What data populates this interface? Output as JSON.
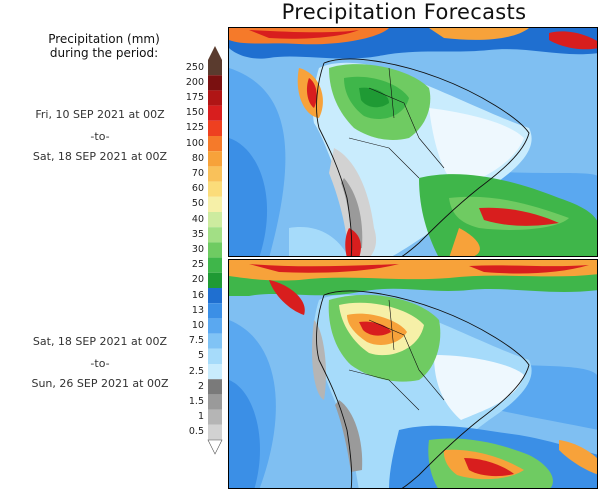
{
  "header": {
    "title": "Precipitation Forecasts"
  },
  "legend": {
    "title_line1": "Precipitation (mm)",
    "title_line2": "during the period:",
    "levels": [
      "250",
      "200",
      "175",
      "150",
      "125",
      "100",
      "80",
      "70",
      "60",
      "50",
      "40",
      "35",
      "30",
      "25",
      "20",
      "16",
      "13",
      "10",
      "7.5",
      "5",
      "2.5",
      "2",
      "1.5",
      "1",
      "0.5"
    ],
    "colors": [
      "#5a3b2e",
      "#7a1010",
      "#b01515",
      "#d81e1e",
      "#ee4020",
      "#f57a2a",
      "#f7a23a",
      "#f9c15a",
      "#fbdc7a",
      "#f6f0a8",
      "#cdeb9f",
      "#a2df85",
      "#6fcb62",
      "#3fb64a",
      "#1f9a34",
      "#1f6fd0",
      "#3b8fe6",
      "#5aa8f0",
      "#80c3f5",
      "#a6dbfa",
      "#c9ecfd",
      "#7a7a7a",
      "#9a9a9a",
      "#b5b5b5",
      "#d2d2d2"
    ]
  },
  "panels": [
    {
      "from": "Fri, 10 SEP 2021 at 00Z",
      "to_word": "-to-",
      "to": "Sat, 18 SEP 2021 at 00Z"
    },
    {
      "from": "Sat, 18 SEP 2021 at 00Z",
      "to_word": "-to-",
      "to": "Sun, 26 SEP 2021 at 00Z"
    }
  ]
}
